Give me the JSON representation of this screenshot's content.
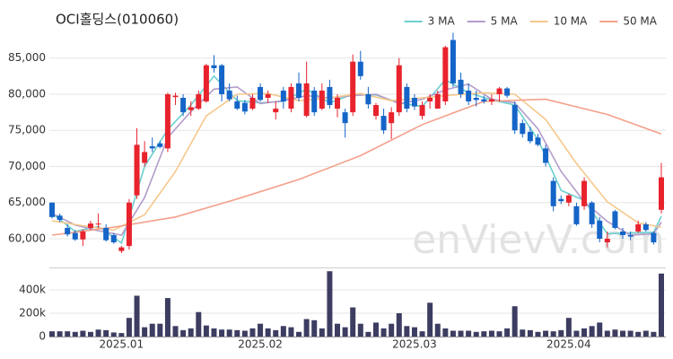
{
  "chart_data": {
    "type": "candlestick",
    "title": "OCI홀딩스(010060)",
    "watermark": "enVievV.com",
    "categories": [
      null,
      null,
      null,
      null,
      null,
      null,
      null,
      null,
      null,
      "2025.01",
      null,
      null,
      null,
      null,
      null,
      null,
      null,
      null,
      null,
      null,
      null,
      null,
      null,
      null,
      null,
      null,
      null,
      "2025.02",
      null,
      null,
      null,
      null,
      null,
      null,
      null,
      null,
      null,
      null,
      null,
      null,
      null,
      null,
      null,
      null,
      null,
      null,
      null,
      "2025.03",
      null,
      null,
      null,
      null,
      null,
      null,
      null,
      null,
      null,
      null,
      null,
      null,
      null,
      null,
      null,
      null,
      null,
      null,
      null,
      "2025.04",
      null,
      null,
      null,
      null,
      null,
      null,
      null,
      null,
      null,
      null,
      null,
      null
    ],
    "open": [
      65000,
      63200,
      61500,
      60800,
      59900,
      61500,
      62000,
      61500,
      60500,
      58300,
      59000,
      66000,
      70500,
      72800,
      73200,
      72500,
      79600,
      79500,
      77800,
      78000,
      79000,
      84000,
      84000,
      80500,
      79000,
      78800,
      78000,
      81000,
      79500,
      77500,
      80500,
      78000,
      81500,
      77000,
      80500,
      78000,
      81000,
      78000,
      77500,
      77500,
      84500,
      80000,
      77000,
      77000,
      76000,
      77500,
      81000,
      79500,
      77000,
      79000,
      78000,
      79000,
      87500,
      82000,
      80500,
      79500,
      79300,
      79000,
      80000,
      80800,
      78500,
      76000,
      74800,
      74000,
      72500,
      68000,
      65500,
      65000,
      64500,
      64500,
      65000,
      62500,
      59500,
      63800,
      61000,
      60500,
      61000,
      62000,
      60800,
      64000
    ],
    "high": [
      65000,
      63500,
      62000,
      61200,
      61300,
      62500,
      63500,
      62000,
      60800,
      59000,
      65500,
      75300,
      73500,
      74000,
      73500,
      80200,
      80200,
      80000,
      79000,
      80500,
      84200,
      85400,
      84200,
      81500,
      79800,
      79200,
      80000,
      81500,
      80500,
      79000,
      81000,
      81500,
      83000,
      84500,
      81000,
      81500,
      82000,
      80000,
      78000,
      85500,
      86000,
      81000,
      78800,
      78000,
      78200,
      85000,
      81500,
      80000,
      79000,
      80000,
      80500,
      86700,
      88500,
      83000,
      81500,
      80500,
      79800,
      80000,
      81000,
      81000,
      79000,
      76500,
      75500,
      74500,
      73000,
      68500,
      66000,
      66200,
      65000,
      68500,
      65200,
      63000,
      61000,
      64000,
      61500,
      61000,
      62500,
      62300,
      61000,
      70500
    ],
    "low": [
      62800,
      62300,
      60300,
      59700,
      59000,
      61200,
      61500,
      59600,
      59300,
      58000,
      58500,
      65500,
      70000,
      72000,
      72500,
      72000,
      78500,
      77000,
      77000,
      77800,
      78800,
      83000,
      79000,
      79000,
      77800,
      77200,
      77800,
      79000,
      78800,
      76500,
      78000,
      77500,
      79000,
      76800,
      77000,
      77800,
      78000,
      76800,
      74000,
      77000,
      82000,
      78000,
      76500,
      74500,
      73800,
      77000,
      77500,
      77800,
      76500,
      78000,
      78000,
      78500,
      81000,
      79500,
      78500,
      78300,
      78700,
      78500,
      79000,
      79500,
      74500,
      74000,
      73200,
      72800,
      70000,
      63800,
      64800,
      64500,
      61800,
      64000,
      61500,
      59500,
      58800,
      61300,
      60000,
      59800,
      60800,
      61000,
      59200,
      63500
    ],
    "close": [
      63000,
      62600,
      60600,
      59900,
      61000,
      62100,
      62100,
      59800,
      59500,
      58800,
      65000,
      73000,
      72000,
      72500,
      72700,
      80000,
      79800,
      77500,
      78200,
      80000,
      84000,
      83600,
      80000,
      79300,
      78000,
      77600,
      79500,
      79200,
      80000,
      78000,
      79000,
      81000,
      79500,
      81500,
      77500,
      80500,
      78500,
      79500,
      76000,
      84500,
      82500,
      78600,
      78500,
      75000,
      77500,
      84000,
      78000,
      78300,
      78500,
      79500,
      80000,
      86500,
      81500,
      80000,
      79000,
      79200,
      79000,
      79300,
      80800,
      79800,
      75000,
      74500,
      73500,
      73000,
      70500,
      64500,
      65200,
      66000,
      62000,
      68000,
      62000,
      60000,
      60000,
      61500,
      60500,
      60300,
      62000,
      61200,
      59500,
      68500
    ],
    "up_color": "#e8232d",
    "down_color": "#1565c8",
    "ylim": [
      56150,
      90800
    ],
    "yticks": [
      {
        "value": 60000,
        "label": "60,000"
      },
      {
        "value": 65000,
        "label": "65,000"
      },
      {
        "value": 70000,
        "label": "70,000"
      },
      {
        "value": 75000,
        "label": "75,000"
      },
      {
        "value": 80000,
        "label": "80,000"
      },
      {
        "value": 85000,
        "label": "85,000"
      }
    ],
    "grid": true,
    "legend_position": "top-right",
    "series": [
      {
        "name": "3 MA",
        "color": "#6ccfcf",
        "x": [
          0,
          3,
          6,
          9,
          12,
          15,
          18,
          21,
          24,
          27,
          30,
          33,
          36,
          39,
          42,
          45,
          48,
          51,
          54,
          57,
          60,
          63,
          66,
          69,
          72,
          75,
          78,
          79
        ],
        "values": [
          63500,
          61000,
          61700,
          59400,
          70000,
          75100,
          78500,
          82500,
          79100,
          78800,
          79000,
          80700,
          78800,
          80000,
          79900,
          78800,
          78300,
          82000,
          80200,
          79200,
          78500,
          73700,
          66700,
          65300,
          60700,
          60800,
          60900,
          63100
        ]
      },
      {
        "name": "5 MA",
        "color": "#b39ccb",
        "x": [
          0,
          3,
          6,
          9,
          12,
          15,
          18,
          21,
          24,
          27,
          30,
          33,
          36,
          39,
          42,
          45,
          48,
          51,
          54,
          57,
          60,
          63,
          66,
          69,
          72,
          75,
          78,
          79
        ],
        "values": [
          63500,
          61900,
          61100,
          60500,
          65700,
          74000,
          77600,
          80700,
          81000,
          78700,
          79100,
          79800,
          79500,
          79800,
          80000,
          78700,
          79300,
          80600,
          81400,
          79300,
          78800,
          75200,
          69300,
          65100,
          62400,
          60500,
          60700,
          62300
        ]
      },
      {
        "name": "10 MA",
        "color": "#f5c88c",
        "x": [
          0,
          4,
          8,
          12,
          16,
          20,
          24,
          28,
          32,
          36,
          40,
          44,
          48,
          52,
          56,
          60,
          64,
          68,
          72,
          76,
          79
        ],
        "values": [
          62500,
          61800,
          61200,
          63300,
          69300,
          77000,
          80000,
          80100,
          79100,
          79500,
          80100,
          79100,
          79500,
          79900,
          80200,
          80000,
          76500,
          70400,
          65100,
          62200,
          61600
        ]
      },
      {
        "name": "50 MA",
        "color": "#f4a08a",
        "x": [
          0,
          8,
          16,
          24,
          32,
          40,
          48,
          56,
          64,
          72,
          79
        ],
        "values": [
          60500,
          61600,
          63000,
          65500,
          68200,
          71500,
          75800,
          79000,
          79300,
          77200,
          74500
        ]
      }
    ],
    "volume": {
      "type": "bar",
      "color": "#3d3d62",
      "values": [
        45000,
        45000,
        45000,
        40000,
        50000,
        40000,
        60000,
        55000,
        35000,
        30000,
        160000,
        350000,
        80000,
        110000,
        110000,
        330000,
        90000,
        55000,
        70000,
        210000,
        95000,
        70000,
        60000,
        60000,
        55000,
        50000,
        70000,
        110000,
        70000,
        55000,
        90000,
        80000,
        40000,
        150000,
        140000,
        70000,
        560000,
        110000,
        80000,
        250000,
        110000,
        40000,
        120000,
        70000,
        110000,
        200000,
        90000,
        80000,
        45000,
        290000,
        110000,
        70000,
        50000,
        50000,
        50000,
        40000,
        45000,
        50000,
        45000,
        70000,
        260000,
        60000,
        55000,
        40000,
        50000,
        45000,
        55000,
        160000,
        50000,
        70000,
        90000,
        120000,
        50000,
        60000,
        50000,
        50000,
        40000,
        50000,
        40000,
        540000
      ],
      "ylim": [
        0,
        577000
      ],
      "yticks": [
        0,
        {
          "value": 200000,
          "label": "200k"
        },
        {
          "value": 400000,
          "label": "400k"
        }
      ]
    }
  }
}
